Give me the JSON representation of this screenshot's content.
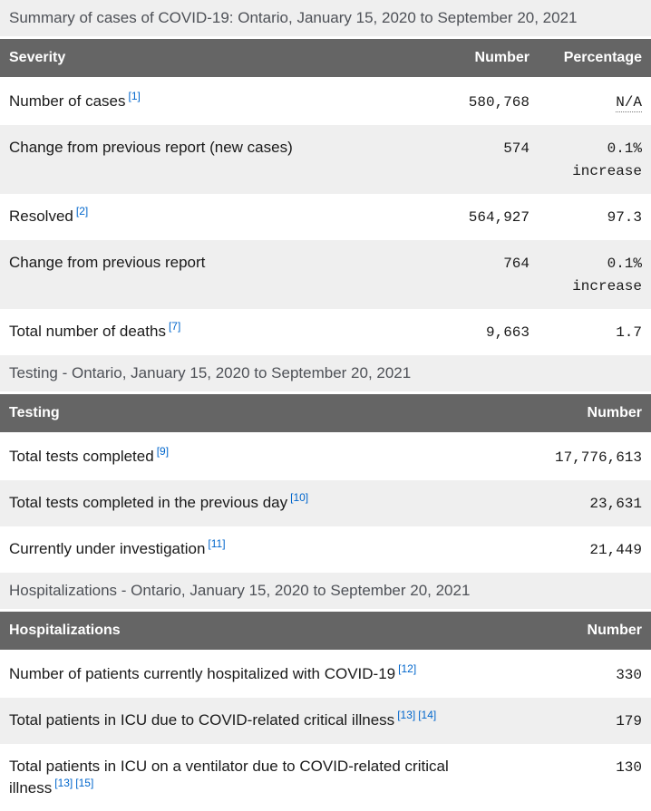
{
  "colors": {
    "header_bg": "#656565",
    "header_text": "#ffffff",
    "caption_bg": "#efefef",
    "zebra_bg": "#efefef",
    "body_text": "#1a1a1a",
    "caption_text": "#4e5157",
    "footnote_link": "#0066cc"
  },
  "tables": [
    {
      "caption": "Summary of cases of COVID-19: Ontario, January 15, 2020 to September 20, 2021",
      "columns": [
        "Severity",
        "Number",
        "Percentage"
      ],
      "rows": [
        {
          "label": "Number of cases",
          "footnotes": [
            "[1]"
          ],
          "number": "580,768",
          "percentage": "N/A",
          "percentage_abbr": true
        },
        {
          "label": "Change from previous report (new cases)",
          "footnotes": [],
          "number": "574",
          "percentage": "0.1%",
          "percentage_line2": "increase"
        },
        {
          "label": "Resolved",
          "footnotes": [
            "[2]"
          ],
          "number": "564,927",
          "percentage": "97.3"
        },
        {
          "label": "Change from previous report",
          "footnotes": [],
          "number": "764",
          "percentage": "0.1%",
          "percentage_line2": "increase"
        },
        {
          "label": "Total number of deaths",
          "footnotes": [
            "[7]"
          ],
          "number": "9,663",
          "percentage": "1.7"
        }
      ]
    },
    {
      "caption": "Testing - Ontario, January 15, 2020 to September 20, 2021",
      "columns": [
        "Testing",
        "Number"
      ],
      "rows": [
        {
          "label": "Total tests completed",
          "footnotes": [
            "[9]"
          ],
          "number": "17,776,613"
        },
        {
          "label": "Total tests completed in the previous day",
          "footnotes": [
            "[10]"
          ],
          "number": "23,631"
        },
        {
          "label": "Currently under investigation",
          "footnotes": [
            "[11]"
          ],
          "number": "21,449"
        }
      ]
    },
    {
      "caption": "Hospitalizations - Ontario, January 15, 2020 to September 20, 2021",
      "columns": [
        "Hospitalizations",
        "Number"
      ],
      "rows": [
        {
          "label": "Number of patients currently hospitalized with COVID-19",
          "footnotes": [
            "[12]"
          ],
          "number": "330"
        },
        {
          "label": "Total patients in ICU due to COVID-related critical illness",
          "footnotes": [
            "[13]",
            "[14]"
          ],
          "number": "179"
        },
        {
          "label": "Total patients in ICU on a ventilator due to COVID-related critical illness",
          "footnotes": [
            "[13]",
            "[15]"
          ],
          "number": "130"
        }
      ]
    }
  ]
}
